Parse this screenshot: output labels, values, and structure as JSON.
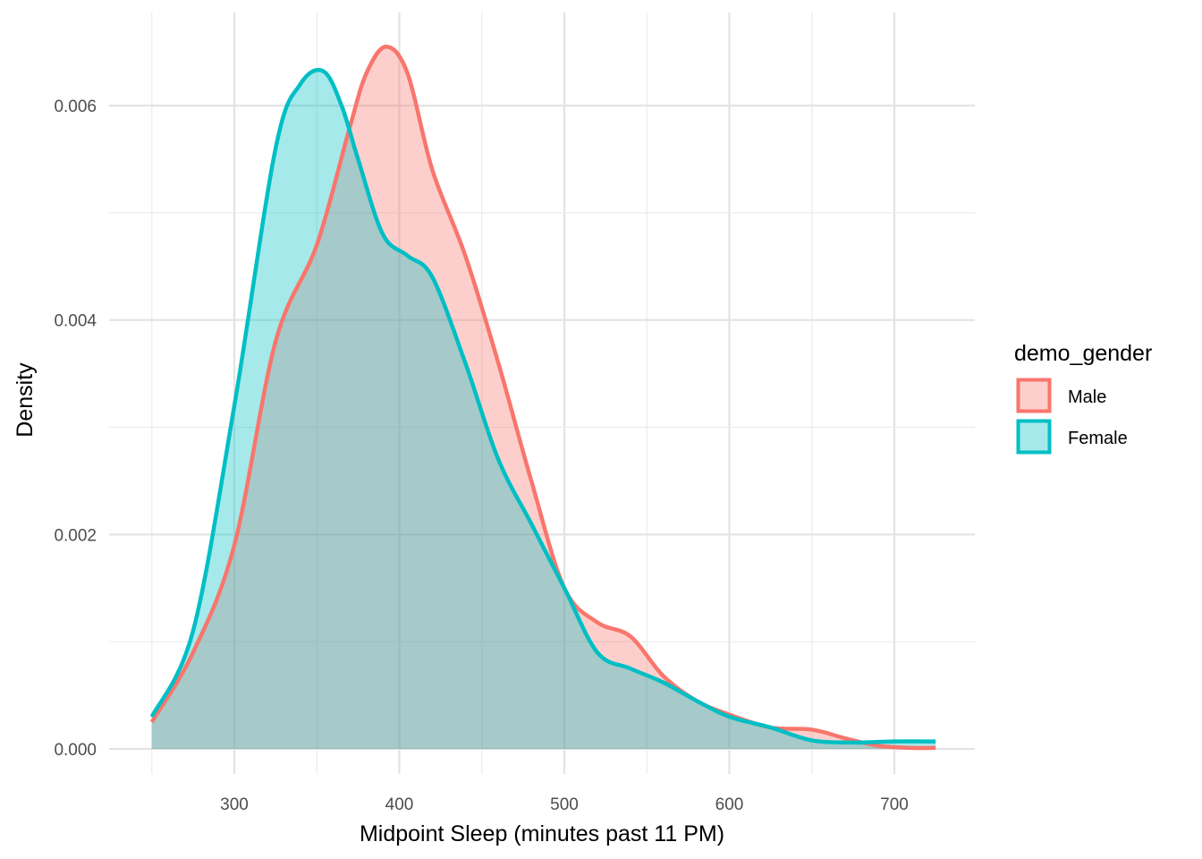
{
  "chart_data": {
    "type": "area",
    "xlabel": "Midpoint Sleep (minutes past 11 PM)",
    "ylabel": "Density",
    "xlim": [
      250,
      725
    ],
    "ylim": [
      0,
      0.0066
    ],
    "x_ticks": [
      300,
      400,
      500,
      600,
      700
    ],
    "x_tick_labels": [
      "300",
      "400",
      "500",
      "600",
      "700"
    ],
    "y_ticks": [
      0,
      0.002,
      0.004,
      0.006
    ],
    "y_tick_labels": [
      "0.000",
      "0.002",
      "0.004",
      "0.006"
    ],
    "grid": true,
    "legend": {
      "title": "demo_gender",
      "position": "right"
    },
    "series": [
      {
        "name": "Male",
        "color": "#F8766D",
        "fill": "#F8766D",
        "x": [
          250,
          275,
          300,
          325,
          350,
          370,
          380,
          392,
          405,
          420,
          440,
          460,
          480,
          500,
          520,
          540,
          560,
          580,
          600,
          625,
          650,
          670,
          690,
          710,
          725
        ],
        "values": [
          0.00025,
          0.0009,
          0.0019,
          0.0038,
          0.0047,
          0.0058,
          0.0063,
          0.00655,
          0.0063,
          0.0054,
          0.0046,
          0.0036,
          0.0025,
          0.0015,
          0.00118,
          0.00105,
          0.00068,
          0.00045,
          0.00032,
          0.0002,
          0.00018,
          0.0001,
          3e-05,
          1e-05,
          1e-05
        ]
      },
      {
        "name": "Female",
        "color": "#00BFC4",
        "fill": "#00BFC4",
        "x": [
          250,
          275,
          300,
          325,
          340,
          354,
          365,
          375,
          390,
          405,
          420,
          440,
          460,
          480,
          500,
          520,
          540,
          560,
          580,
          600,
          625,
          650,
          675,
          700,
          725
        ],
        "values": [
          0.0003,
          0.0011,
          0.0032,
          0.0056,
          0.0062,
          0.00632,
          0.006,
          0.0055,
          0.0048,
          0.0046,
          0.0044,
          0.0036,
          0.0027,
          0.0021,
          0.0015,
          0.0009,
          0.00075,
          0.00062,
          0.00045,
          0.0003,
          0.0002,
          8e-05,
          6e-05,
          7e-05,
          7e-05
        ]
      }
    ]
  }
}
